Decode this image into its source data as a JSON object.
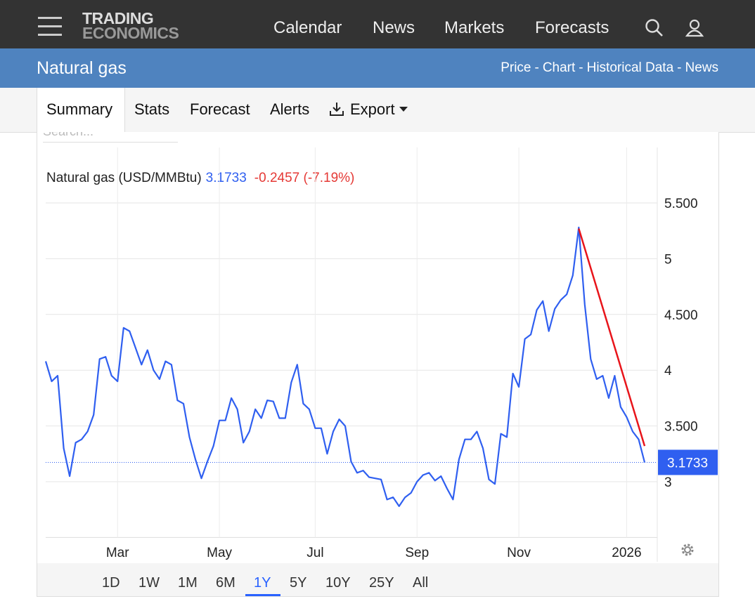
{
  "header": {
    "logo_top": "TRADING",
    "logo_bottom": "ECONOMICS",
    "nav": [
      "Calendar",
      "News",
      "Markets",
      "Forecasts"
    ]
  },
  "page": {
    "title": "Natural gas",
    "links": [
      "Price",
      "Chart",
      "Historical Data",
      "News"
    ],
    "link_separator": "-"
  },
  "tabs": {
    "items": [
      "Summary",
      "Stats",
      "Forecast",
      "Alerts",
      "Export"
    ],
    "active": "Summary"
  },
  "search_placeholder": "Search...",
  "ranges": {
    "items": [
      "1D",
      "1W",
      "1M",
      "6M",
      "1Y",
      "5Y",
      "10Y",
      "25Y",
      "All"
    ],
    "active": "1Y"
  },
  "chart_data": {
    "type": "line",
    "title": "Natural gas (USD/MMBtu)",
    "change": "-0.2457 (-7.19%)",
    "categories": [
      null,
      null,
      null,
      null,
      null,
      null,
      null,
      null,
      null,
      null,
      null,
      null,
      "Mar",
      null,
      null,
      null,
      null,
      null,
      null,
      null,
      null,
      null,
      null,
      null,
      null,
      null,
      null,
      null,
      null,
      "May",
      null,
      null,
      null,
      null,
      null,
      null,
      null,
      null,
      null,
      null,
      null,
      null,
      null,
      null,
      null,
      "Jul",
      null,
      null,
      null,
      null,
      null,
      null,
      null,
      null,
      null,
      null,
      null,
      null,
      null,
      null,
      null,
      null,
      "Sep",
      null,
      null,
      null,
      null,
      null,
      null,
      null,
      null,
      null,
      null,
      null,
      null,
      null,
      null,
      null,
      null,
      "Nov",
      null,
      null,
      null,
      null,
      null,
      null,
      null,
      null,
      null,
      null,
      null,
      null,
      null,
      null,
      null,
      null,
      null,
      "2026",
      null,
      null,
      null
    ],
    "series": [
      {
        "color": "#2f5ff0",
        "values": [
          4.08,
          3.9,
          3.95,
          3.3,
          3.05,
          3.35,
          3.38,
          3.45,
          3.6,
          4.1,
          4.12,
          3.95,
          3.9,
          4.38,
          4.35,
          4.2,
          4.05,
          4.18,
          4.0,
          3.92,
          4.08,
          4.05,
          3.73,
          3.7,
          3.4,
          3.2,
          3.03,
          3.18,
          3.32,
          3.55,
          3.55,
          3.75,
          3.65,
          3.35,
          3.45,
          3.65,
          3.57,
          3.73,
          3.72,
          3.57,
          3.57,
          3.89,
          4.05,
          3.7,
          3.65,
          3.48,
          3.48,
          3.25,
          3.45,
          3.56,
          3.5,
          3.18,
          3.08,
          3.1,
          3.04,
          3.03,
          3.02,
          2.84,
          2.86,
          2.78,
          2.86,
          2.9,
          3.0,
          3.06,
          3.08,
          3.01,
          3.05,
          2.94,
          2.84,
          3.2,
          3.38,
          3.38,
          3.45,
          3.3,
          3.02,
          2.98,
          3.43,
          3.4,
          3.97,
          3.85,
          4.28,
          4.32,
          4.54,
          4.62,
          4.35,
          4.55,
          4.63,
          4.68,
          4.85,
          5.28,
          4.59,
          4.1,
          3.92,
          3.95,
          3.75,
          3.95,
          3.67,
          3.58,
          3.45,
          3.38,
          3.1733
        ]
      }
    ],
    "ylim": [
      2.5,
      6.0
    ],
    "yticks": [
      3,
      {
        "value": 3.5,
        "label": "3.500"
      },
      4,
      {
        "value": 4.5,
        "label": "4.500"
      },
      5,
      {
        "value": 5.5,
        "label": "5.500"
      }
    ],
    "grid": true,
    "trendline": {
      "color": "#e8141a",
      "points": [
        [
          89,
          5.27
        ],
        [
          100,
          3.32
        ]
      ]
    }
  }
}
